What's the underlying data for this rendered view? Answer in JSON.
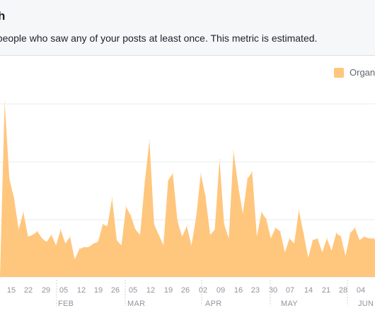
{
  "header": {
    "title": "h",
    "description": "f people who saw any of your posts at least once. This metric is estimated."
  },
  "legend": {
    "label": "Organ"
  },
  "colors": {
    "area": "#ffc67d",
    "grid": "#e9ebee",
    "separator": "#ccd0d5"
  },
  "chart_data": {
    "type": "area",
    "title": "",
    "xlabel": "",
    "ylabel": "",
    "grid": true,
    "legend_position": "top-right",
    "series": [
      {
        "name": "Organ",
        "x_start": 13,
        "values": [
          0,
          100,
          56,
          45,
          27,
          37,
          23,
          24,
          26,
          22,
          20,
          24,
          18,
          27,
          19,
          23,
          10,
          16,
          17,
          17,
          19,
          20,
          30,
          29,
          45,
          21,
          18,
          40,
          35,
          27,
          24,
          54,
          78,
          30,
          24,
          18,
          55,
          59,
          32,
          23,
          29,
          18,
          34,
          59,
          46,
          24,
          27,
          67,
          30,
          22,
          72,
          52,
          36,
          56,
          60,
          23,
          37,
          33,
          22,
          28,
          26,
          14,
          22,
          19,
          38,
          25,
          11,
          21,
          22,
          14,
          22,
          15,
          25,
          23,
          12,
          25,
          28,
          21,
          23,
          22,
          22,
          20,
          26,
          34,
          60,
          45,
          32,
          29,
          23,
          36,
          32
        ]
      }
    ],
    "x_tick_labels": [
      "15",
      "22",
      "29",
      "05",
      "12",
      "19",
      "26",
      "05",
      "12",
      "19",
      "26",
      "02",
      "09",
      "16",
      "23",
      "30",
      "07",
      "14",
      "21",
      "28",
      "04"
    ],
    "month_labels": [
      "FEB",
      "MAR",
      "APR",
      "MAY",
      "JUN"
    ]
  }
}
